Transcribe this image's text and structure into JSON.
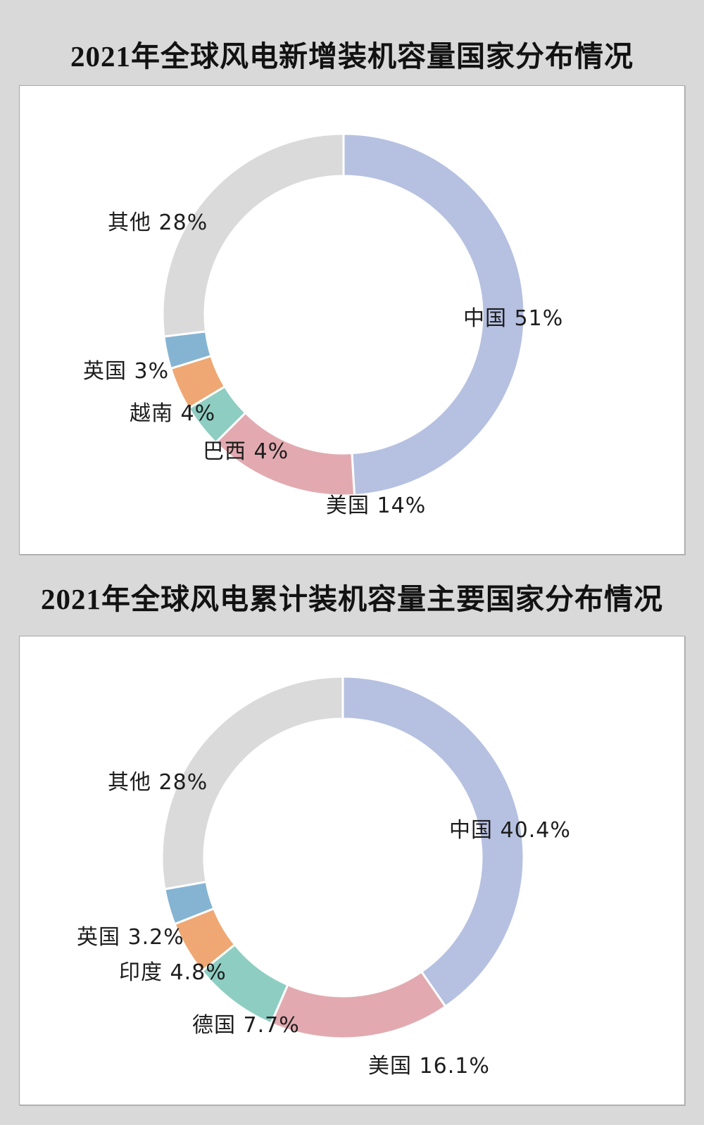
{
  "page": {
    "background": "#d9d9d9",
    "panel_background": "#ffffff",
    "panel_border": "#a6a6a6",
    "label_text_color": "#1d1d1d",
    "title_text_color": "#121212"
  },
  "chart_data": [
    {
      "type": "pie",
      "variant": "donut",
      "title": "2021年全球风电新增装机容量国家分布情况",
      "start_angle_deg": 0,
      "direction": "clockwise",
      "legend": "none",
      "labels_outside": true,
      "slice_gap_color": "#ffffff",
      "slices": [
        {
          "name": "中国",
          "label": "中国 51%",
          "value": 51,
          "color": "#b6c1e1"
        },
        {
          "name": "美国",
          "label": "美国 14%",
          "value": 14,
          "color": "#e2aab0"
        },
        {
          "name": "巴西",
          "label": "巴西 4%",
          "value": 4,
          "color": "#8ecec2"
        },
        {
          "name": "越南",
          "label": "越南 4%",
          "value": 4,
          "color": "#efa873"
        },
        {
          "name": "英国",
          "label": "英国 3%",
          "value": 3,
          "color": "#85b4d3"
        },
        {
          "name": "其他",
          "label": "其他 28%",
          "value": 28,
          "color": "#dadadb"
        }
      ]
    },
    {
      "type": "pie",
      "variant": "donut",
      "title": "2021年全球风电累计装机容量主要国家分布情况",
      "start_angle_deg": 0,
      "direction": "clockwise",
      "legend": "none",
      "labels_outside": true,
      "slice_gap_color": "#ffffff",
      "slices": [
        {
          "name": "中国",
          "label": "中国 40.4%",
          "value": 40.4,
          "color": "#b6c1e1"
        },
        {
          "name": "美国",
          "label": "美国 16.1%",
          "value": 16.1,
          "color": "#e2aab0"
        },
        {
          "name": "德国",
          "label": "德国 7.7%",
          "value": 7.7,
          "color": "#8ecec2"
        },
        {
          "name": "印度",
          "label": "印度 4.8%",
          "value": 4.8,
          "color": "#efa873"
        },
        {
          "name": "英国",
          "label": "英国 3.2%",
          "value": 3.2,
          "color": "#85b4d3"
        },
        {
          "name": "其他",
          "label": "其他 28%",
          "value": 27.8,
          "color": "#dadadb"
        }
      ]
    }
  ]
}
